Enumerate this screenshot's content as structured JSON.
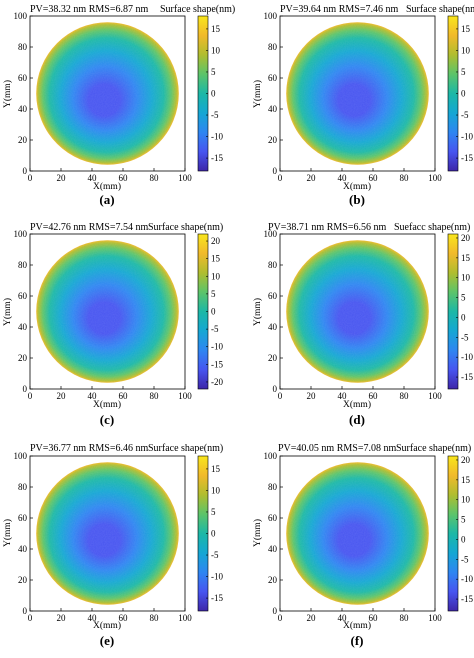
{
  "chart_data": [
    {
      "type": "heatmap",
      "panel_label": "(a)",
      "title": "PV=38.32 nm RMS=6.87 nm",
      "colorbar_label": "Surface shape(nm)",
      "xlabel": "X(mm)",
      "ylabel": "Y(mm)",
      "xlim": [
        0,
        100
      ],
      "ylim": [
        0,
        100
      ],
      "xticks": [
        "0",
        "20",
        "40",
        "60",
        "80",
        "100"
      ],
      "yticks": [
        "0",
        "20",
        "40",
        "60",
        "80",
        "100"
      ],
      "aperture_center_mm": [
        50,
        50
      ],
      "aperture_radius_mm": 46,
      "clim": [
        -18,
        18
      ],
      "colorbar_ticks": [
        "15",
        "10",
        "5",
        "0",
        "-5",
        "-10",
        "-15"
      ],
      "colorbar_tick_values": [
        15,
        10,
        5,
        0,
        -5,
        -10,
        -15
      ],
      "pv_nm": 38.32,
      "rms_nm": 6.87
    },
    {
      "type": "heatmap",
      "panel_label": "(b)",
      "title": "PV=39.64 nm RMS=7.46 nm",
      "colorbar_label": "Surface shape(nm)",
      "xlabel": "X(mm)",
      "ylabel": "Y(mm)",
      "xlim": [
        0,
        100
      ],
      "ylim": [
        0,
        100
      ],
      "xticks": [
        "0",
        "20",
        "40",
        "60",
        "80",
        "100"
      ],
      "yticks": [
        "0",
        "20",
        "40",
        "60",
        "80",
        "100"
      ],
      "aperture_center_mm": [
        50,
        50
      ],
      "aperture_radius_mm": 46,
      "clim": [
        -18,
        18
      ],
      "colorbar_ticks": [
        "15",
        "10",
        "5",
        "0",
        "-5",
        "-10",
        "-15"
      ],
      "colorbar_tick_values": [
        15,
        10,
        5,
        0,
        -5,
        -10,
        -15
      ],
      "pv_nm": 39.64,
      "rms_nm": 7.46
    },
    {
      "type": "heatmap",
      "panel_label": "(c)",
      "title": "PV=42.76 nm RMS=7.54 nm",
      "colorbar_label": "Surface shape(nm)",
      "xlabel": "X(mm)",
      "ylabel": "Y(mm)",
      "xlim": [
        0,
        100
      ],
      "ylim": [
        0,
        100
      ],
      "xticks": [
        "0",
        "20",
        "40",
        "60",
        "80",
        "100"
      ],
      "yticks": [
        "0",
        "20",
        "40",
        "60",
        "80",
        "100"
      ],
      "aperture_center_mm": [
        50,
        50
      ],
      "aperture_radius_mm": 46,
      "clim": [
        -22,
        22
      ],
      "colorbar_ticks": [
        "20",
        "15",
        "10",
        "5",
        "0",
        "-5",
        "-10",
        "-15",
        "-20"
      ],
      "colorbar_tick_values": [
        20,
        15,
        10,
        5,
        0,
        -5,
        -10,
        -15,
        -20
      ],
      "pv_nm": 42.76,
      "rms_nm": 7.54
    },
    {
      "type": "heatmap",
      "panel_label": "(d)",
      "title": "PV=38.71 nm RMS=6.56 nm",
      "colorbar_label": "Suefacc shape(nm)",
      "xlabel": "X(mm)",
      "ylabel": "Y(mm)",
      "xlim": [
        0,
        100
      ],
      "ylim": [
        0,
        100
      ],
      "xticks": [
        "0",
        "20",
        "40",
        "60",
        "80",
        "100"
      ],
      "yticks": [
        "0",
        "20",
        "40",
        "60",
        "80",
        "100"
      ],
      "aperture_center_mm": [
        50,
        50
      ],
      "aperture_radius_mm": 46,
      "clim": [
        -18,
        21
      ],
      "colorbar_ticks": [
        "20",
        "15",
        "10",
        "5",
        "0",
        "-5",
        "-10",
        "-15"
      ],
      "colorbar_tick_values": [
        20,
        15,
        10,
        5,
        0,
        -5,
        -10,
        -15
      ],
      "pv_nm": 38.71,
      "rms_nm": 6.56
    },
    {
      "type": "heatmap",
      "panel_label": "(e)",
      "title": "PV=36.77 nm RMS=6.46 nm",
      "colorbar_label": "Surface shape(nm)",
      "xlabel": "X(mm)",
      "ylabel": "Y(mm)",
      "xlim": [
        0,
        100
      ],
      "ylim": [
        0,
        100
      ],
      "xticks": [
        "0",
        "20",
        "40",
        "60",
        "80",
        "100"
      ],
      "yticks": [
        "0",
        "20",
        "40",
        "60",
        "80",
        "100"
      ],
      "aperture_center_mm": [
        50,
        50
      ],
      "aperture_radius_mm": 46,
      "clim": [
        -18,
        18
      ],
      "colorbar_ticks": [
        "15",
        "10",
        "5",
        "0",
        "-5",
        "-10",
        "-15"
      ],
      "colorbar_tick_values": [
        15,
        10,
        5,
        0,
        -5,
        -10,
        -15
      ],
      "pv_nm": 36.77,
      "rms_nm": 6.46
    },
    {
      "type": "heatmap",
      "panel_label": "(f)",
      "title": "PV=40.05 nm RMS=7.08 nm",
      "colorbar_label": "Surface shape(nm)",
      "xlabel": "X(mm)",
      "ylabel": "Y(mm)",
      "xlim": [
        0,
        100
      ],
      "ylim": [
        0,
        100
      ],
      "xticks": [
        "0",
        "20",
        "40",
        "60",
        "80",
        "100"
      ],
      "yticks": [
        "0",
        "20",
        "40",
        "60",
        "80",
        "100"
      ],
      "aperture_center_mm": [
        50,
        50
      ],
      "aperture_radius_mm": 46,
      "clim": [
        -18,
        21
      ],
      "colorbar_ticks": [
        "20",
        "15",
        "10",
        "5",
        "0",
        "-5",
        "-10",
        "-15"
      ],
      "colorbar_tick_values": [
        20,
        15,
        10,
        5,
        0,
        -5,
        -10,
        -15
      ],
      "pv_nm": 40.05,
      "rms_nm": 7.08
    }
  ],
  "colormap": {
    "name": "parula",
    "stops": [
      "#3e26a8",
      "#4755f0",
      "#2e86f1",
      "#15a7d3",
      "#1cb8a6",
      "#5cc46a",
      "#b0bd2f",
      "#f1ba2b",
      "#f9e61c"
    ]
  }
}
